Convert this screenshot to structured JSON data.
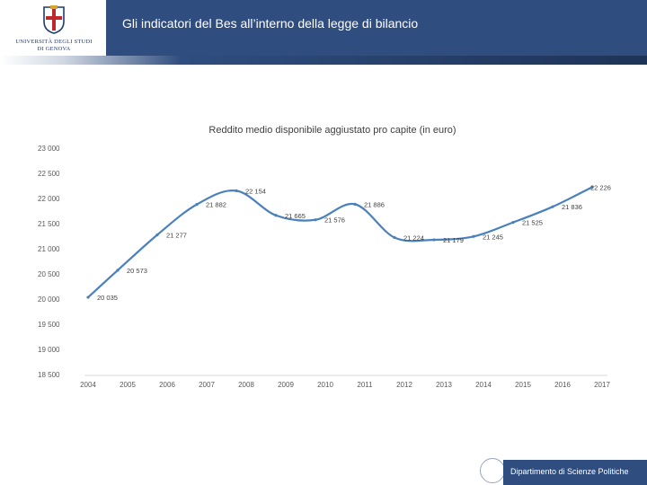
{
  "header": {
    "title": "Gli indicatori del Bes all’interno della legge di bilancio",
    "logo_line1": "UNIVERSITÀ DEGLI STUDI",
    "logo_line2": "DI GENOVA"
  },
  "footer": {
    "department": "Dipartimento di Scienze Politiche"
  },
  "colors": {
    "header_blue": "#2f4d7e",
    "series_blue": "#4a81bd"
  },
  "chart_data": {
    "type": "line",
    "title": "Reddito medio disponibile aggiustato pro capite (in euro)",
    "xlabel": "",
    "ylabel": "",
    "ylim": [
      18500,
      23000
    ],
    "yticks": [
      23000,
      22500,
      22000,
      21500,
      21000,
      20500,
      20000,
      19500,
      19000,
      18500
    ],
    "ytick_labels": [
      "23 000",
      "22 500",
      "22 000",
      "21 500",
      "21 000",
      "20 500",
      "20 000",
      "19 500",
      "19 000",
      "18 500"
    ],
    "categories": [
      "2004",
      "2005",
      "2006",
      "2007",
      "2008",
      "2009",
      "2010",
      "2011",
      "2012",
      "2013",
      "2014",
      "2015",
      "2016",
      "2017"
    ],
    "series": [
      {
        "name": "Reddito medio disponibile aggiustato pro capite",
        "x": [
          2004,
          2004.75,
          2005.75,
          2006.75,
          2007.75,
          2008.75,
          2009.75,
          2010.75,
          2011.75,
          2012.75,
          2013.75,
          2014.75,
          2015.75,
          2016.75
        ],
        "values": [
          20035,
          20573,
          21277,
          21882,
          22154,
          21665,
          21576,
          21886,
          21224,
          21179,
          21245,
          21525,
          21836,
          22226
        ],
        "labels": [
          "20 035",
          "20 573",
          "21 277",
          "21 882",
          "22 154",
          "21 665",
          "21 576",
          "21 886",
          "21 224",
          "21 179",
          "21 245",
          "21 525",
          "21 836",
          "22 226"
        ]
      }
    ],
    "grid": false
  }
}
